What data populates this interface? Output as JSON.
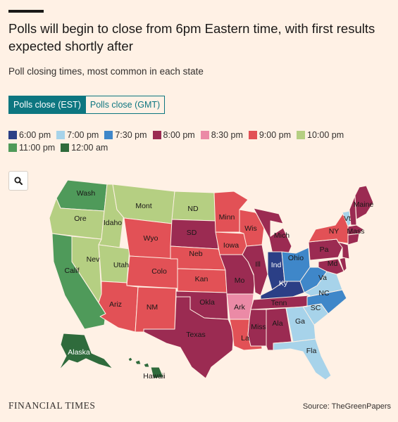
{
  "header": {
    "title": "Polls will begin to close from 6pm Eastern time, with first results expected shortly after",
    "subtitle": "Poll closing times, most common in each state"
  },
  "toggle": {
    "est_label": "Polls close (EST)",
    "gmt_label": "Polls close (GMT)",
    "active": "est"
  },
  "legend": [
    {
      "label": "6:00 pm",
      "color": "#2b3f86"
    },
    {
      "label": "7:00 pm",
      "color": "#a7d3ea"
    },
    {
      "label": "7:30 pm",
      "color": "#3f87c9"
    },
    {
      "label": "8:00 pm",
      "color": "#9b2b52"
    },
    {
      "label": "8:30 pm",
      "color": "#eb8aa6"
    },
    {
      "label": "9:00 pm",
      "color": "#e25156"
    },
    {
      "label": "10:00 pm",
      "color": "#b5cf82"
    },
    {
      "label": "11:00 pm",
      "color": "#4f9a5a"
    },
    {
      "label": "12:00 am",
      "color": "#2f6b3c"
    }
  ],
  "search": {
    "icon": "search-icon"
  },
  "map": {
    "states": [
      {
        "id": "wa",
        "label": "Wash",
        "color": "#4f9a5a"
      },
      {
        "id": "or",
        "label": "Ore",
        "color": "#b5cf82"
      },
      {
        "id": "ca",
        "label": "Calif",
        "color": "#4f9a5a"
      },
      {
        "id": "id",
        "label": "Idaho",
        "color": "#b5cf82"
      },
      {
        "id": "nv",
        "label": "Nev",
        "color": "#b5cf82"
      },
      {
        "id": "ut",
        "label": "Utah",
        "color": "#b5cf82"
      },
      {
        "id": "mt",
        "label": "Mont",
        "color": "#b5cf82"
      },
      {
        "id": "nd",
        "label": "ND",
        "color": "#b5cf82"
      },
      {
        "id": "wy",
        "label": "Wyo",
        "color": "#e25156"
      },
      {
        "id": "co",
        "label": "Colo",
        "color": "#e25156"
      },
      {
        "id": "az",
        "label": "Ariz",
        "color": "#e25156"
      },
      {
        "id": "nm",
        "label": "NM",
        "color": "#e25156"
      },
      {
        "id": "sd",
        "label": "SD",
        "color": "#9b2b52"
      },
      {
        "id": "ne",
        "label": "Neb",
        "color": "#e25156"
      },
      {
        "id": "ks",
        "label": "Kan",
        "color": "#e25156"
      },
      {
        "id": "ok",
        "label": "Okla",
        "color": "#9b2b52"
      },
      {
        "id": "tx",
        "label": "Texas",
        "color": "#9b2b52"
      },
      {
        "id": "mn",
        "label": "Minn",
        "color": "#e25156"
      },
      {
        "id": "ia",
        "label": "Iowa",
        "color": "#e25156"
      },
      {
        "id": "mo",
        "label": "Mo",
        "color": "#9b2b52"
      },
      {
        "id": "ar",
        "label": "Ark",
        "color": "#eb8aa6"
      },
      {
        "id": "la",
        "label": "La",
        "color": "#e25156"
      },
      {
        "id": "wi",
        "label": "Wis",
        "color": "#e25156"
      },
      {
        "id": "il",
        "label": "Ill",
        "color": "#9b2b52"
      },
      {
        "id": "mi",
        "label": "Mich",
        "color": "#9b2b52"
      },
      {
        "id": "in",
        "label": "Ind",
        "color": "#2b3f86"
      },
      {
        "id": "oh",
        "label": "Ohio",
        "color": "#3f87c9"
      },
      {
        "id": "ky",
        "label": "Ky",
        "color": "#2b3f86"
      },
      {
        "id": "tn",
        "label": "Tenn",
        "color": "#9b2b52"
      },
      {
        "id": "ms",
        "label": "Miss",
        "color": "#9b2b52"
      },
      {
        "id": "al",
        "label": "Ala",
        "color": "#9b2b52"
      },
      {
        "id": "ga",
        "label": "Ga",
        "color": "#a7d3ea"
      },
      {
        "id": "fl",
        "label": "Fla",
        "color": "#a7d3ea"
      },
      {
        "id": "sc",
        "label": "SC",
        "color": "#a7d3ea"
      },
      {
        "id": "nc",
        "label": "NC",
        "color": "#3f87c9"
      },
      {
        "id": "va",
        "label": "Va",
        "color": "#a7d3ea"
      },
      {
        "id": "wv",
        "label": "",
        "color": "#3f87c9"
      },
      {
        "id": "pa",
        "label": "Pa",
        "color": "#9b2b52"
      },
      {
        "id": "md",
        "label": "Md",
        "color": "#9b2b52"
      },
      {
        "id": "ny",
        "label": "NY",
        "color": "#e25156"
      },
      {
        "id": "vt",
        "label": "Vt",
        "color": "#a7d3ea"
      },
      {
        "id": "nh",
        "label": "",
        "color": "#9b2b52"
      },
      {
        "id": "me",
        "label": "Maine",
        "color": "#9b2b52"
      },
      {
        "id": "ma",
        "label": "Mass",
        "color": "#9b2b52"
      },
      {
        "id": "ct",
        "label": "",
        "color": "#9b2b52"
      },
      {
        "id": "nj",
        "label": "",
        "color": "#9b2b52"
      },
      {
        "id": "de",
        "label": "",
        "color": "#9b2b52"
      },
      {
        "id": "ak",
        "label": "Alaska",
        "color": "#2f6b3c"
      },
      {
        "id": "hi",
        "label": "Hawaii",
        "color": "#2f6b3c"
      }
    ]
  },
  "footer": {
    "brand": "FINANCIAL TIMES",
    "source": "Source: TheGreenPapers"
  }
}
